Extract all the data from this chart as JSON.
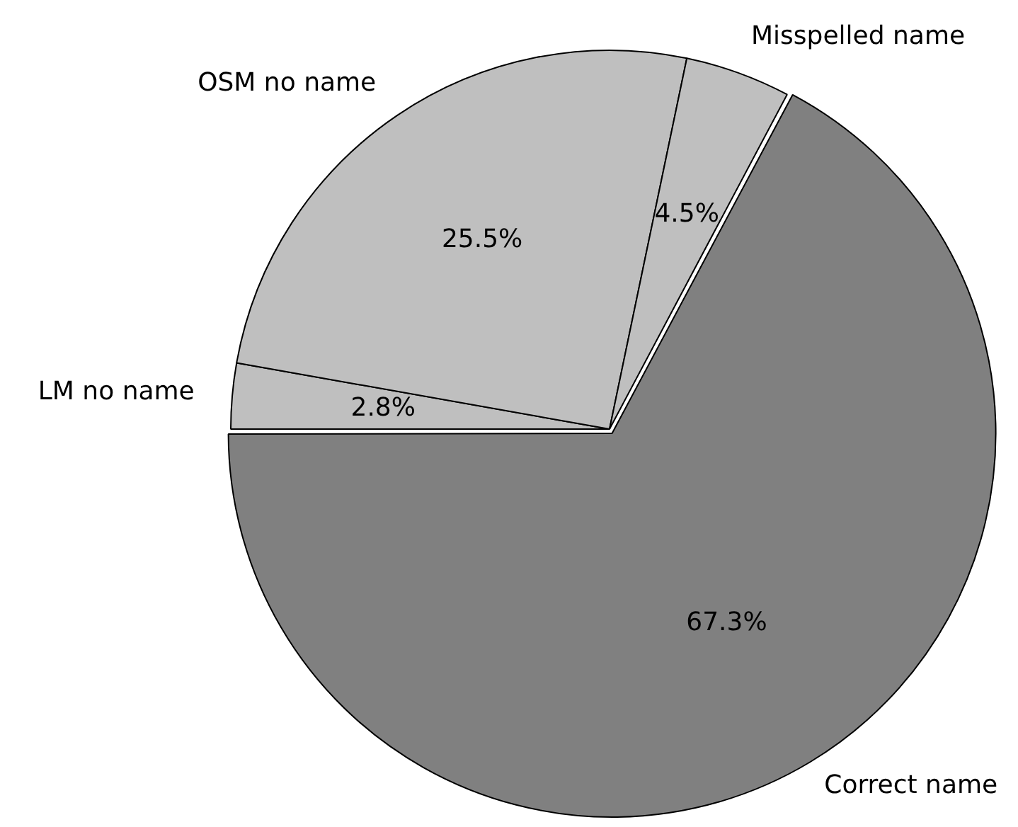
{
  "chart_data": {
    "type": "pie",
    "categories": [
      "LM no name",
      "OSM no name",
      "Misspelled name",
      "Correct name"
    ],
    "values": [
      2.8,
      25.5,
      4.5,
      67.3
    ],
    "colors": [
      "#bfbfbf",
      "#bfbfbf",
      "#bfbfbf",
      "#808080"
    ],
    "value_labels": [
      "2.8%",
      "25.5%",
      "4.5%",
      "67.3%"
    ]
  }
}
